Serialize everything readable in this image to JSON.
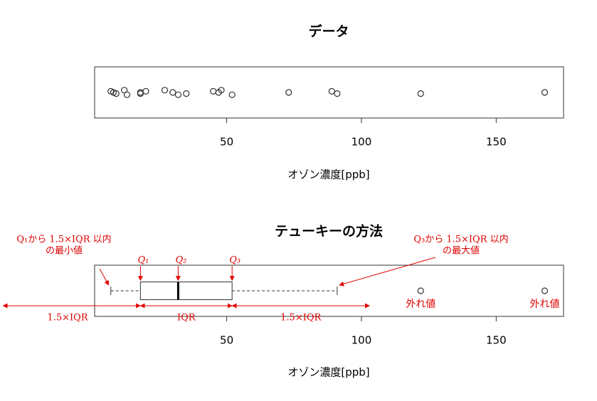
{
  "chart_data": [
    {
      "type": "strip",
      "title": "データ",
      "xlabel": "オゾン濃度[ppb]",
      "values": [
        7,
        8,
        9,
        12,
        13,
        18,
        18,
        20,
        27,
        30,
        32,
        35,
        45,
        47,
        48,
        52,
        73,
        89,
        91,
        122,
        168
      ],
      "xlim": [
        1,
        175
      ],
      "xticks": [
        50,
        100,
        150
      ]
    },
    {
      "type": "box",
      "title": "テューキーの方法",
      "xlabel": "オゾン濃度[ppb]",
      "box": {
        "whisker_low": 7,
        "q1": 18,
        "median": 32,
        "q3": 52,
        "whisker_high": 91
      },
      "outliers": [
        122,
        168
      ],
      "outlier_label": "外れ値",
      "xlim": [
        1,
        175
      ],
      "xticks": [
        50,
        100,
        150
      ],
      "annotations": {
        "min_line1": "Q₁から 1.5×IQR 以内",
        "min_line2": "の最小値",
        "max_line1": "Q₃から 1.5×IQR 以内",
        "max_line2": "の最大値",
        "q1": "Q₁",
        "q2": "Q₂",
        "q3": "Q₃",
        "left_range": "1.5×IQR",
        "iqr": "IQR",
        "right_range": "1.5×IQR"
      }
    }
  ]
}
